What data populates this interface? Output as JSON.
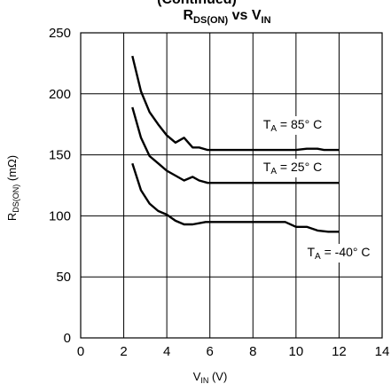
{
  "header": {
    "partial_text": "(Continued)"
  },
  "chart_data": {
    "type": "line",
    "title": {
      "main": "R",
      "sub1": "DS(ON)",
      "mid": " vs V",
      "sub2": "IN"
    },
    "xlabel": {
      "main": "V",
      "sub": "IN",
      "tail": " (V)"
    },
    "ylabel": {
      "main": "R",
      "sub": "DS(ON)",
      "tail": " (mΩ)"
    },
    "xlim": [
      0,
      14
    ],
    "ylim": [
      0,
      250
    ],
    "xticks": [
      0,
      2,
      4,
      6,
      8,
      10,
      12,
      14
    ],
    "yticks": [
      0,
      50,
      100,
      150,
      200,
      250
    ],
    "grid": true,
    "series": [
      {
        "name": {
          "main": "T",
          "sub": "A",
          "tail": " = 85° C"
        },
        "x": [
          2.4,
          2.8,
          3.2,
          3.6,
          4.0,
          4.4,
          4.8,
          5.2,
          5.5,
          5.9,
          6.5,
          7.2,
          8.0,
          9.0,
          10.0,
          10.5,
          11.0,
          11.3,
          11.6,
          12.0
        ],
        "y": [
          231,
          202,
          185,
          175,
          166,
          160,
          164,
          156,
          156,
          154,
          154,
          154,
          154,
          154,
          154,
          155,
          155,
          154,
          154,
          154
        ]
      },
      {
        "name": {
          "main": "T",
          "sub": "A",
          "tail": " = 25° C"
        },
        "x": [
          2.4,
          2.8,
          3.2,
          3.6,
          4.0,
          4.4,
          4.8,
          5.2,
          5.5,
          5.9,
          6.5,
          7.5,
          8.5,
          9.5,
          10.5,
          11.5,
          12.0
        ],
        "y": [
          189,
          164,
          149,
          143,
          137,
          133,
          129,
          132,
          129,
          127,
          127,
          127,
          127,
          127,
          127,
          127,
          127
        ]
      },
      {
        "name": {
          "main": "T",
          "sub": "A",
          "tail": " = -40° C"
        },
        "x": [
          2.4,
          2.8,
          3.2,
          3.6,
          4.0,
          4.4,
          4.8,
          5.2,
          5.5,
          5.8,
          6.5,
          7.5,
          8.5,
          9.5,
          10.0,
          10.5,
          11.0,
          11.5,
          12.0
        ],
        "y": [
          143,
          121,
          110,
          104,
          101,
          96,
          93,
          93,
          94,
          95,
          95,
          95,
          95,
          95,
          91,
          91,
          88,
          87,
          87
        ]
      }
    ]
  }
}
